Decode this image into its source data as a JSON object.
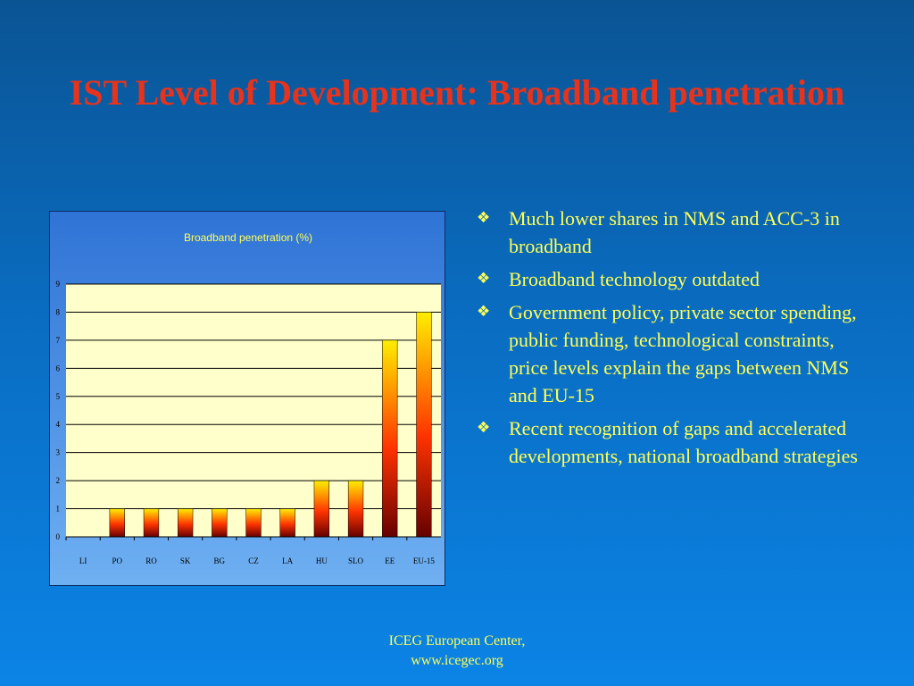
{
  "slide": {
    "title": "IST Level of Development: Broadband penetration",
    "footer_line1": "ICEG European Center,",
    "footer_line2": "www.icegec.org"
  },
  "bullets": [
    {
      "icon": "diamond-bullet-icon",
      "text": "Much lower shares in NMS and ACC-3 in broadband"
    },
    {
      "icon": "diamond-bullet-icon",
      "text": "Broadband technology outdated"
    },
    {
      "icon": "diamond-bullet-icon",
      "text": "Government policy, private sector spending, public funding, technological constraints, price levels explain the gaps between NMS and EU-15"
    },
    {
      "icon": "diamond-bullet-icon",
      "text": "Recent recognition of gaps and accelerated developments, national broadband strategies"
    }
  ],
  "colors": {
    "title": "#e8331c",
    "text": "#ffff55",
    "plot_bg": "#ffffcc",
    "bar_top": "#ffee00",
    "bar_mid": "#ff3300",
    "bar_bottom": "#660000"
  },
  "chart_data": {
    "type": "bar",
    "title": "Broadband penetration (%)",
    "categories": [
      "LI",
      "PO",
      "RO",
      "SK",
      "BG",
      "CZ",
      "LA",
      "HU",
      "SLO",
      "EE",
      "EU-15"
    ],
    "values": [
      0,
      1,
      1,
      1,
      1,
      1,
      1,
      2,
      2,
      7,
      8
    ],
    "ylim": [
      0,
      9
    ],
    "yticks": [
      "0",
      "1",
      "2",
      "3",
      "4",
      "5",
      "6",
      "7",
      "8",
      "9"
    ],
    "grid": true,
    "xlabel": "",
    "ylabel": ""
  }
}
